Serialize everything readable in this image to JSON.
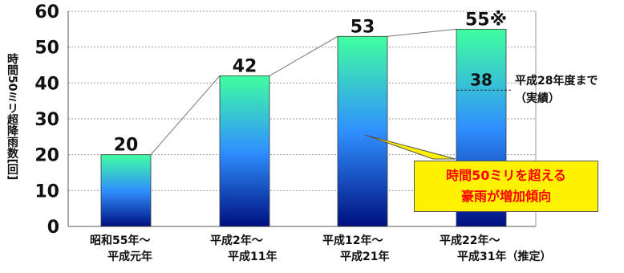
{
  "chart_data": {
    "type": "bar",
    "ylabel": "時間50ミリ超降雨数[回]",
    "ylim": [
      0,
      60
    ],
    "yticks": [
      "0",
      "10",
      "20",
      "30",
      "40",
      "50",
      "60"
    ],
    "categories": [
      {
        "line1": "昭和55年～",
        "line2": "平成元年"
      },
      {
        "line1": "平成2年～",
        "line2": "平成11年"
      },
      {
        "line1": "平成12年～",
        "line2": "平成21年"
      },
      {
        "line1": "平成22年～",
        "line2": "平成31年（推定）"
      }
    ],
    "values": [
      20,
      42,
      53,
      55
    ],
    "value_labels": [
      "20",
      "42",
      "53",
      "55※"
    ],
    "actual_value": 38,
    "actual_label": "38",
    "actual_note": [
      "平成28年度まで",
      "（実績）"
    ],
    "callout": [
      "時間50ミリを超える",
      "豪雨が増加傾向"
    ],
    "grid": true,
    "colors": {
      "bar_top": "#40ffa0",
      "bar_mid": "#3090ff",
      "bar_bottom": "#001080",
      "callout_fill": "#fff200",
      "callout_text": "#ff0000"
    }
  }
}
